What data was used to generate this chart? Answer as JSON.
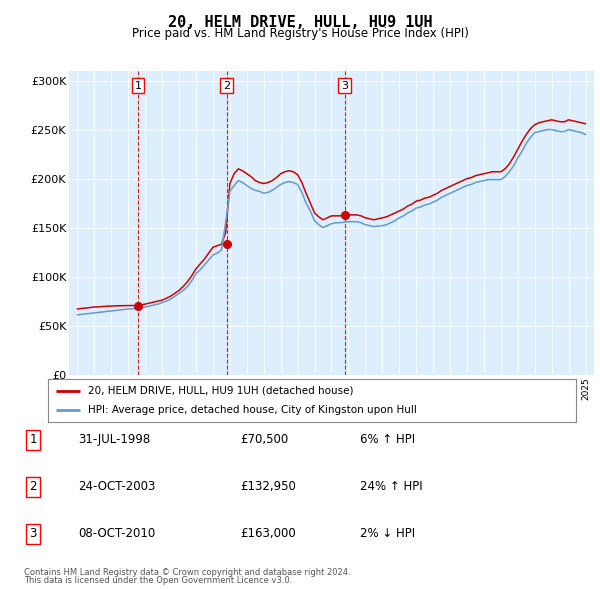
{
  "title": "20, HELM DRIVE, HULL, HU9 1UH",
  "subtitle": "Price paid vs. HM Land Registry's House Price Index (HPI)",
  "legend_line1": "20, HELM DRIVE, HULL, HU9 1UH (detached house)",
  "legend_line2": "HPI: Average price, detached house, City of Kingston upon Hull",
  "footer1": "Contains HM Land Registry data © Crown copyright and database right 2024.",
  "footer2": "This data is licensed under the Open Government Licence v3.0.",
  "transactions": [
    {
      "num": 1,
      "date": "31-JUL-1998",
      "price": 70500,
      "year": 1998.58,
      "pct": "6%",
      "dir": "↑"
    },
    {
      "num": 2,
      "date": "24-OCT-2003",
      "price": 132950,
      "year": 2003.81,
      "pct": "24%",
      "dir": "↑"
    },
    {
      "num": 3,
      "date": "08-OCT-2010",
      "price": 163000,
      "year": 2010.77,
      "pct": "2%",
      "dir": "↓"
    }
  ],
  "ylim": [
    0,
    310000
  ],
  "xlim_start": 1994.5,
  "xlim_end": 2025.5,
  "yticks": [
    0,
    50000,
    100000,
    150000,
    200000,
    250000,
    300000
  ],
  "ytick_labels": [
    "£0",
    "£50K",
    "£100K",
    "£150K",
    "£200K",
    "£250K",
    "£300K"
  ],
  "xticks": [
    1995,
    1996,
    1997,
    1998,
    1999,
    2000,
    2001,
    2002,
    2003,
    2004,
    2005,
    2006,
    2007,
    2008,
    2009,
    2010,
    2011,
    2012,
    2013,
    2014,
    2015,
    2016,
    2017,
    2018,
    2019,
    2020,
    2021,
    2022,
    2023,
    2024,
    2025
  ],
  "red_line_color": "#cc0000",
  "blue_line_color": "#6699cc",
  "plot_bg_color": "#ddeeff",
  "outer_bg_color": "#ffffff",
  "vline_color": "#cc0000",
  "marker_color": "#cc0000",
  "red_hpi_data": {
    "years": [
      1995.0,
      1995.25,
      1995.5,
      1995.75,
      1996.0,
      1996.25,
      1996.5,
      1996.75,
      1997.0,
      1997.25,
      1997.5,
      1997.75,
      1998.0,
      1998.25,
      1998.5,
      1998.75,
      1999.0,
      1999.25,
      1999.5,
      1999.75,
      2000.0,
      2000.25,
      2000.5,
      2000.75,
      2001.0,
      2001.25,
      2001.5,
      2001.75,
      2002.0,
      2002.25,
      2002.5,
      2002.75,
      2003.0,
      2003.25,
      2003.5,
      2003.75,
      2004.0,
      2004.25,
      2004.5,
      2004.75,
      2005.0,
      2005.25,
      2005.5,
      2005.75,
      2006.0,
      2006.25,
      2006.5,
      2006.75,
      2007.0,
      2007.25,
      2007.5,
      2007.75,
      2008.0,
      2008.25,
      2008.5,
      2008.75,
      2009.0,
      2009.25,
      2009.5,
      2009.75,
      2010.0,
      2010.25,
      2010.5,
      2010.75,
      2011.0,
      2011.25,
      2011.5,
      2011.75,
      2012.0,
      2012.25,
      2012.5,
      2012.75,
      2013.0,
      2013.25,
      2013.5,
      2013.75,
      2014.0,
      2014.25,
      2014.5,
      2014.75,
      2015.0,
      2015.25,
      2015.5,
      2015.75,
      2016.0,
      2016.25,
      2016.5,
      2016.75,
      2017.0,
      2017.25,
      2017.5,
      2017.75,
      2018.0,
      2018.25,
      2018.5,
      2018.75,
      2019.0,
      2019.25,
      2019.5,
      2019.75,
      2020.0,
      2020.25,
      2020.5,
      2020.75,
      2021.0,
      2021.25,
      2021.5,
      2021.75,
      2022.0,
      2022.25,
      2022.5,
      2022.75,
      2023.0,
      2023.25,
      2023.5,
      2023.75,
      2024.0,
      2024.25,
      2024.5,
      2024.75,
      2025.0
    ],
    "values": [
      67000,
      67500,
      68000,
      68500,
      69000,
      69200,
      69500,
      69800,
      70000,
      70200,
      70300,
      70400,
      70500,
      70500,
      70500,
      71000,
      72000,
      73000,
      74000,
      75000,
      76000,
      78000,
      80000,
      83000,
      86000,
      90000,
      95000,
      101000,
      108000,
      113000,
      118000,
      124000,
      130000,
      131500,
      133000,
      145000,
      195000,
      205000,
      210000,
      208000,
      205000,
      202000,
      198000,
      196000,
      195000,
      196000,
      198000,
      201000,
      205000,
      207000,
      208000,
      207000,
      204000,
      196000,
      185000,
      175000,
      165000,
      161000,
      158000,
      160000,
      162000,
      162000,
      162000,
      162500,
      163000,
      163000,
      163000,
      162000,
      160000,
      159000,
      158000,
      159000,
      160000,
      161000,
      163000,
      165000,
      167000,
      169000,
      172000,
      174000,
      177000,
      178000,
      180000,
      181000,
      183000,
      185000,
      188000,
      190000,
      192000,
      194000,
      196000,
      198000,
      200000,
      201000,
      203000,
      204000,
      205000,
      206000,
      207000,
      207000,
      207000,
      210000,
      215000,
      222000,
      230000,
      238000,
      245000,
      251000,
      255000,
      257000,
      258000,
      259000,
      260000,
      259000,
      258000,
      258000,
      260000,
      259000,
      258000,
      257000,
      256000
    ]
  },
  "blue_hpi_data": {
    "years": [
      1995.0,
      1995.25,
      1995.5,
      1995.75,
      1996.0,
      1996.25,
      1996.5,
      1996.75,
      1997.0,
      1997.25,
      1997.5,
      1997.75,
      1998.0,
      1998.25,
      1998.5,
      1998.75,
      1999.0,
      1999.25,
      1999.5,
      1999.75,
      2000.0,
      2000.25,
      2000.5,
      2000.75,
      2001.0,
      2001.25,
      2001.5,
      2001.75,
      2002.0,
      2002.25,
      2002.5,
      2002.75,
      2003.0,
      2003.25,
      2003.5,
      2003.75,
      2004.0,
      2004.25,
      2004.5,
      2004.75,
      2005.0,
      2005.25,
      2005.5,
      2005.75,
      2006.0,
      2006.25,
      2006.5,
      2006.75,
      2007.0,
      2007.25,
      2007.5,
      2007.75,
      2008.0,
      2008.25,
      2008.5,
      2008.75,
      2009.0,
      2009.25,
      2009.5,
      2009.75,
      2010.0,
      2010.25,
      2010.5,
      2010.75,
      2011.0,
      2011.25,
      2011.5,
      2011.75,
      2012.0,
      2012.25,
      2012.5,
      2012.75,
      2013.0,
      2013.25,
      2013.5,
      2013.75,
      2014.0,
      2014.25,
      2014.5,
      2014.75,
      2015.0,
      2015.25,
      2015.5,
      2015.75,
      2016.0,
      2016.25,
      2016.5,
      2016.75,
      2017.0,
      2017.25,
      2017.5,
      2017.75,
      2018.0,
      2018.25,
      2018.5,
      2018.75,
      2019.0,
      2019.25,
      2019.5,
      2019.75,
      2020.0,
      2020.25,
      2020.5,
      2020.75,
      2021.0,
      2021.25,
      2021.5,
      2021.75,
      2022.0,
      2022.25,
      2022.5,
      2022.75,
      2023.0,
      2023.25,
      2023.5,
      2023.75,
      2024.0,
      2024.25,
      2024.5,
      2024.75,
      2025.0
    ],
    "values": [
      61000,
      61500,
      62000,
      62500,
      63000,
      63500,
      64000,
      64500,
      65000,
      65500,
      66000,
      66500,
      67000,
      67200,
      67500,
      68000,
      69000,
      70000,
      71000,
      72000,
      73500,
      75000,
      77000,
      80000,
      83000,
      86000,
      90000,
      96000,
      103000,
      107000,
      112000,
      117000,
      122000,
      124000,
      127000,
      155000,
      187000,
      193000,
      198000,
      196000,
      193000,
      190000,
      188000,
      187000,
      185000,
      186000,
      188000,
      191000,
      194000,
      196000,
      197000,
      196000,
      194000,
      186000,
      175000,
      167000,
      157000,
      153000,
      150000,
      152000,
      154000,
      155000,
      155000,
      155500,
      156000,
      156000,
      156000,
      155000,
      153000,
      152000,
      151000,
      151500,
      152000,
      153000,
      155000,
      157000,
      160000,
      162000,
      165000,
      167000,
      170000,
      171000,
      173000,
      174000,
      176000,
      178000,
      181000,
      183000,
      185000,
      187000,
      189000,
      191000,
      193000,
      194000,
      196000,
      197000,
      198000,
      199000,
      199000,
      199000,
      199000,
      202000,
      207000,
      213000,
      221000,
      228000,
      236000,
      242000,
      247000,
      248000,
      249000,
      250000,
      250000,
      249000,
      248000,
      248000,
      250000,
      249000,
      248000,
      247000,
      245000
    ]
  }
}
